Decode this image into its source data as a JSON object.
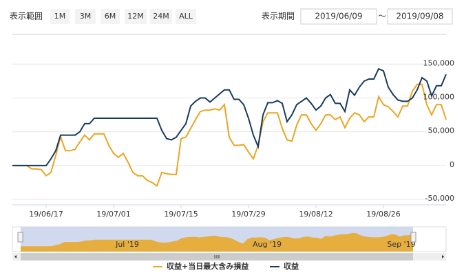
{
  "controls": {
    "range_label": "表示範囲",
    "buttons": [
      {
        "label": "1M",
        "enabled": true
      },
      {
        "label": "3M",
        "enabled": true
      },
      {
        "label": "6M",
        "enabled": false
      },
      {
        "label": "12M",
        "enabled": false
      },
      {
        "label": "24M",
        "enabled": false
      },
      {
        "label": "ALL",
        "enabled": true
      }
    ],
    "period_label": "表示期間",
    "from": "2019/06/09",
    "separator": "～",
    "to": "2019/09/08"
  },
  "navigator": {
    "labels": [
      "Jul '19",
      "Aug '19",
      "Sep '19"
    ]
  },
  "chart_data": {
    "type": "line",
    "x": [
      "19/06/10",
      "19/06/11",
      "19/06/12",
      "19/06/13",
      "19/06/14",
      "19/06/15",
      "19/06/16",
      "19/06/17",
      "19/06/18",
      "19/06/19",
      "19/06/20",
      "19/06/21",
      "19/06/22",
      "19/06/23",
      "19/06/24",
      "19/06/25",
      "19/06/26",
      "19/06/27",
      "19/06/28",
      "19/06/29",
      "19/06/30",
      "19/07/01",
      "19/07/02",
      "19/07/03",
      "19/07/04",
      "19/07/05",
      "19/07/06",
      "19/07/07",
      "19/07/08",
      "19/07/09",
      "19/07/10",
      "19/07/11",
      "19/07/12",
      "19/07/13",
      "19/07/14",
      "19/07/15",
      "19/07/16",
      "19/07/17",
      "19/07/18",
      "19/07/19",
      "19/07/20",
      "19/07/21",
      "19/07/22",
      "19/07/23",
      "19/07/24",
      "19/07/25",
      "19/07/26",
      "19/07/27",
      "19/07/28",
      "19/07/29",
      "19/07/30",
      "19/07/31",
      "19/08/01",
      "19/08/02",
      "19/08/03",
      "19/08/04",
      "19/08/05",
      "19/08/06",
      "19/08/07",
      "19/08/08",
      "19/08/09",
      "19/08/10",
      "19/08/11",
      "19/08/12",
      "19/08/13",
      "19/08/14",
      "19/08/15",
      "19/08/16",
      "19/08/17",
      "19/08/18",
      "19/08/19",
      "19/08/20",
      "19/08/21",
      "19/08/22",
      "19/08/23",
      "19/08/24",
      "19/08/25",
      "19/08/26",
      "19/08/27",
      "19/08/28",
      "19/08/29",
      "19/08/30",
      "19/08/31",
      "19/09/01",
      "19/09/02",
      "19/09/03",
      "19/09/04",
      "19/09/05",
      "19/09/06",
      "19/09/07",
      "19/09/08"
    ],
    "series": [
      {
        "name": "収益+当日最大含み損益",
        "color": "#eaa520",
        "values": [
          0,
          0,
          0,
          0,
          -5000,
          -5000,
          -6000,
          -15000,
          -10000,
          15000,
          43000,
          22000,
          22000,
          24000,
          35000,
          45000,
          38000,
          47000,
          47000,
          47000,
          30000,
          18000,
          12000,
          18000,
          5000,
          -10000,
          -15000,
          -15000,
          -22000,
          -25000,
          -30000,
          -10000,
          -12000,
          -13000,
          -13000,
          40000,
          42000,
          55000,
          68000,
          80000,
          82000,
          82000,
          84000,
          82000,
          90000,
          42000,
          30000,
          30000,
          31000,
          20000,
          10000,
          30000,
          65000,
          78000,
          78000,
          78000,
          55000,
          38000,
          36000,
          60000,
          75000,
          75000,
          62000,
          52000,
          62000,
          75000,
          75000,
          68000,
          72000,
          56000,
          70000,
          78000,
          75000,
          65000,
          72000,
          72000,
          102000,
          90000,
          87000,
          80000,
          72000,
          88000,
          88000,
          110000,
          120000,
          120000,
          90000,
          75000,
          90000,
          90000,
          68000
        ]
      },
      {
        "name": "収益",
        "color": "#173a5e",
        "values": [
          0,
          0,
          0,
          0,
          0,
          0,
          0,
          0,
          10000,
          22000,
          45000,
          45000,
          45000,
          45000,
          50000,
          62000,
          62000,
          70000,
          70000,
          70000,
          70000,
          70000,
          70000,
          70000,
          70000,
          70000,
          70000,
          70000,
          70000,
          70000,
          70000,
          52000,
          40000,
          38000,
          42000,
          52000,
          62000,
          88000,
          95000,
          100000,
          100000,
          94000,
          100000,
          106000,
          112000,
          112000,
          98000,
          98000,
          90000,
          70000,
          45000,
          28000,
          75000,
          93000,
          93000,
          96000,
          92000,
          65000,
          75000,
          90000,
          95000,
          100000,
          92000,
          82000,
          88000,
          100000,
          105000,
          92000,
          92000,
          80000,
          112000,
          104000,
          116000,
          125000,
          128000,
          128000,
          143000,
          140000,
          116000,
          105000,
          97000,
          95000,
          95000,
          100000,
          112000,
          130000,
          125000,
          103000,
          118000,
          118000,
          135000
        ]
      }
    ],
    "xlim": [
      "19/06/10",
      "19/09/08"
    ],
    "xticks": [
      "19/06/17",
      "19/07/01",
      "19/07/15",
      "19/07/29",
      "19/08/12",
      "19/08/26"
    ],
    "ylim": [
      -58000,
      194000
    ],
    "yticks": [
      {
        "value": -50000,
        "label": "-50,000"
      },
      0,
      {
        "value": 50000,
        "label": "50,000"
      },
      {
        "value": 100000,
        "label": "100,000"
      },
      {
        "value": 150000,
        "label": "150,000"
      }
    ],
    "grid": true
  }
}
